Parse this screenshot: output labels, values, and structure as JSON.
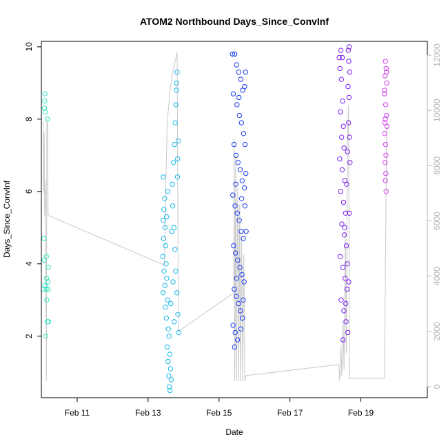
{
  "chart_data": {
    "type": "scatter",
    "title": "ATOM2 Northbound Days_Since_ConvInf",
    "xlabel": "Date",
    "ylabel": "Days_Since_ConvInf",
    "x_unit": "date",
    "xlim": [
      "2019-02-09T23:45",
      "2019-02-20T21:00"
    ],
    "x_ticks": [
      {
        "label": "Feb 11",
        "date": "2019-02-11"
      },
      {
        "label": "Feb 13",
        "date": "2019-02-13"
      },
      {
        "label": "Feb 15",
        "date": "2019-02-15"
      },
      {
        "label": "Feb 17",
        "date": "2019-02-17"
      },
      {
        "label": "Feb 19",
        "date": "2019-02-19"
      }
    ],
    "ylim": [
      0.3,
      10.15
    ],
    "y_ticks": [
      2,
      4,
      6,
      8,
      10
    ],
    "y2_lim": [
      -400,
      12500
    ],
    "y2_ticks": [
      0,
      2000,
      4000,
      6000,
      8000,
      10000,
      12000
    ],
    "grid": false,
    "legend": "none",
    "colors": {
      "line": "#c8c8c8",
      "right_axis": "#b3b3b3",
      "group1": "#2ee8c2",
      "group2": "#14b8ec",
      "group3": "#1a3cf0",
      "group4": "#7a1cf0",
      "group5": "#d43cf0"
    },
    "series": [
      {
        "type": "scatter",
        "color": "#2ee8c2",
        "points": [
          [
            "2019-02-10T02:10",
            8.7
          ],
          [
            "2019-02-10T02:00",
            8.5
          ],
          [
            "2019-02-10T01:50",
            8.3
          ],
          [
            "2019-02-10T02:20",
            8.2
          ],
          [
            "2019-02-10T03:50",
            8.0
          ],
          [
            "2019-02-10T01:30",
            4.7
          ],
          [
            "2019-02-10T01:40",
            4.1
          ],
          [
            "2019-02-10T03:10",
            4.2
          ],
          [
            "2019-02-10T04:30",
            3.9
          ],
          [
            "2019-02-10T03:20",
            3.6
          ],
          [
            "2019-02-10T02:10",
            3.4
          ],
          [
            "2019-02-10T04:10",
            3.5
          ],
          [
            "2019-02-10T01:10",
            3.3
          ],
          [
            "2019-02-10T03:00",
            3.3
          ],
          [
            "2019-02-10T04:20",
            3.3
          ],
          [
            "2019-02-10T03:30",
            3.0
          ],
          [
            "2019-02-10T04:00",
            2.4
          ],
          [
            "2019-02-10T04:30",
            2.4
          ],
          [
            "2019-02-10T02:40",
            2.0
          ]
        ]
      },
      {
        "type": "scatter",
        "color": "#14b8ec",
        "points": [
          [
            "2019-02-13T10:20",
            6.4
          ],
          [
            "2019-02-13T10:40",
            5.5
          ],
          [
            "2019-02-13T11:10",
            5.8
          ],
          [
            "2019-02-13T10:10",
            5.2
          ],
          [
            "2019-02-13T11:30",
            5.0
          ],
          [
            "2019-02-13T10:30",
            4.7
          ],
          [
            "2019-02-13T11:50",
            4.5
          ],
          [
            "2019-02-13T10:00",
            4.2
          ],
          [
            "2019-02-13T12:10",
            4.0
          ],
          [
            "2019-02-13T10:50",
            3.8
          ],
          [
            "2019-02-13T12:40",
            3.6
          ],
          [
            "2019-02-13T11:20",
            3.4
          ],
          [
            "2019-02-13T10:10",
            3.2
          ],
          [
            "2019-02-13T13:10",
            3.0
          ],
          [
            "2019-02-13T11:40",
            2.8
          ],
          [
            "2019-02-13T12:20",
            2.5
          ],
          [
            "2019-02-13T13:40",
            2.2
          ],
          [
            "2019-02-13T14:10",
            2.0
          ],
          [
            "2019-02-13T12:50",
            1.7
          ],
          [
            "2019-02-13T14:40",
            1.5
          ],
          [
            "2019-02-13T13:30",
            1.3
          ],
          [
            "2019-02-13T15:10",
            1.1
          ],
          [
            "2019-02-13T14:00",
            0.9
          ],
          [
            "2019-02-13T15:40",
            0.8
          ],
          [
            "2019-02-13T14:20",
            0.6
          ],
          [
            "2019-02-13T14:50",
            0.5
          ],
          [
            "2019-02-13T16:20",
            6.2
          ],
          [
            "2019-02-13T17:10",
            6.8
          ],
          [
            "2019-02-13T17:50",
            7.3
          ],
          [
            "2019-02-13T18:20",
            7.9
          ],
          [
            "2019-02-13T18:50",
            8.4
          ],
          [
            "2019-02-13T19:10",
            8.8
          ],
          [
            "2019-02-13T19:20",
            9.0
          ],
          [
            "2019-02-13T19:40",
            9.3
          ],
          [
            "2019-02-13T16:40",
            5.6
          ],
          [
            "2019-02-13T17:30",
            5.0
          ],
          [
            "2019-02-13T18:10",
            4.4
          ],
          [
            "2019-02-13T18:40",
            3.8
          ],
          [
            "2019-02-13T19:30",
            3.2
          ],
          [
            "2019-02-13T20:10",
            2.6
          ],
          [
            "2019-02-13T20:40",
            2.1
          ],
          [
            "2019-02-13T20:00",
            6.9
          ],
          [
            "2019-02-13T20:30",
            7.4
          ],
          [
            "2019-02-13T16:00",
            4.9
          ],
          [
            "2019-02-13T15:20",
            2.9
          ],
          [
            "2019-02-13T12:30",
            5.3
          ],
          [
            "2019-02-13T13:20",
            6.0
          ],
          [
            "2019-02-13T16:50",
            3.5
          ],
          [
            "2019-02-13T17:40",
            2.4
          ],
          [
            "2019-02-13T19:50",
            6.4
          ]
        ]
      },
      {
        "type": "scatter",
        "color": "#1a3cf0",
        "points": [
          [
            "2019-02-15T09:10",
            9.8
          ],
          [
            "2019-02-15T10:40",
            9.8
          ],
          [
            "2019-02-15T11:50",
            9.5
          ],
          [
            "2019-02-15T13:20",
            9.3
          ],
          [
            "2019-02-15T14:40",
            9.1
          ],
          [
            "2019-02-15T16:00",
            8.8
          ],
          [
            "2019-02-15T09:40",
            8.7
          ],
          [
            "2019-02-15T12:10",
            8.4
          ],
          [
            "2019-02-15T13:50",
            8.1
          ],
          [
            "2019-02-15T15:10",
            7.9
          ],
          [
            "2019-02-15T16:40",
            7.6
          ],
          [
            "2019-02-15T10:10",
            7.3
          ],
          [
            "2019-02-15T11:30",
            7.0
          ],
          [
            "2019-02-15T12:50",
            6.8
          ],
          [
            "2019-02-15T14:20",
            6.6
          ],
          [
            "2019-02-15T15:40",
            6.3
          ],
          [
            "2019-02-15T17:10",
            6.1
          ],
          [
            "2019-02-15T09:20",
            5.9
          ],
          [
            "2019-02-15T10:50",
            5.6
          ],
          [
            "2019-02-15T12:20",
            5.4
          ],
          [
            "2019-02-15T13:40",
            5.2
          ],
          [
            "2019-02-15T15:00",
            4.9
          ],
          [
            "2019-02-15T16:30",
            4.7
          ],
          [
            "2019-02-15T09:50",
            4.5
          ],
          [
            "2019-02-15T11:10",
            4.3
          ],
          [
            "2019-02-15T12:40",
            4.1
          ],
          [
            "2019-02-15T14:10",
            3.9
          ],
          [
            "2019-02-15T15:30",
            3.7
          ],
          [
            "2019-02-15T17:00",
            3.5
          ],
          [
            "2019-02-15T10:20",
            3.3
          ],
          [
            "2019-02-15T11:40",
            3.1
          ],
          [
            "2019-02-15T13:10",
            2.9
          ],
          [
            "2019-02-15T14:30",
            2.7
          ],
          [
            "2019-02-15T15:50",
            2.5
          ],
          [
            "2019-02-15T09:30",
            2.3
          ],
          [
            "2019-02-15T11:00",
            2.1
          ],
          [
            "2019-02-15T12:30",
            1.9
          ],
          [
            "2019-02-15T10:30",
            1.7
          ],
          [
            "2019-02-15T17:20",
            8.9
          ],
          [
            "2019-02-15T18:00",
            9.3
          ],
          [
            "2019-02-15T17:40",
            7.3
          ],
          [
            "2019-02-15T18:10",
            6.5
          ],
          [
            "2019-02-15T17:30",
            5.6
          ],
          [
            "2019-02-15T18:20",
            4.9
          ],
          [
            "2019-02-15T16:20",
            3.0
          ],
          [
            "2019-02-15T14:50",
            2.2
          ],
          [
            "2019-02-15T13:30",
            8.6
          ],
          [
            "2019-02-15T11:20",
            6.2
          ],
          [
            "2019-02-15T12:00",
            3.6
          ],
          [
            "2019-02-15T15:20",
            5.8
          ]
        ]
      },
      {
        "type": "scatter",
        "color": "#7a1cf0",
        "points": [
          [
            "2019-02-18T09:20",
            9.7
          ],
          [
            "2019-02-18T10:30",
            9.9
          ],
          [
            "2019-02-18T09:50",
            9.4
          ],
          [
            "2019-02-18T10:50",
            9.1
          ],
          [
            "2019-02-18T11:40",
            8.5
          ],
          [
            "2019-02-18T10:10",
            8.2
          ],
          [
            "2019-02-18T12:10",
            7.8
          ],
          [
            "2019-02-18T11:00",
            7.5
          ],
          [
            "2019-02-18T12:40",
            7.2
          ],
          [
            "2019-02-18T09:40",
            6.9
          ],
          [
            "2019-02-18T11:20",
            6.6
          ],
          [
            "2019-02-18T13:10",
            6.3
          ],
          [
            "2019-02-18T10:20",
            6.0
          ],
          [
            "2019-02-18T12:20",
            5.7
          ],
          [
            "2019-02-18T13:40",
            5.4
          ],
          [
            "2019-02-18T11:10",
            5.1
          ],
          [
            "2019-02-18T12:50",
            4.8
          ],
          [
            "2019-02-18T14:10",
            4.5
          ],
          [
            "2019-02-18T10:00",
            4.2
          ],
          [
            "2019-02-18T11:50",
            3.9
          ],
          [
            "2019-02-18T13:20",
            3.6
          ],
          [
            "2019-02-18T14:40",
            3.3
          ],
          [
            "2019-02-18T10:40",
            3.0
          ],
          [
            "2019-02-18T12:30",
            2.7
          ],
          [
            "2019-02-18T14:00",
            2.4
          ],
          [
            "2019-02-18T15:10",
            2.1
          ],
          [
            "2019-02-18T15:30",
            9.9
          ],
          [
            "2019-02-18T16:10",
            10.0
          ],
          [
            "2019-02-18T15:50",
            9.6
          ],
          [
            "2019-02-18T16:30",
            9.3
          ],
          [
            "2019-02-18T15:20",
            8.9
          ],
          [
            "2019-02-18T16:00",
            8.6
          ],
          [
            "2019-02-18T15:40",
            7.9
          ],
          [
            "2019-02-18T16:20",
            7.5
          ],
          [
            "2019-02-18T15:00",
            7.1
          ],
          [
            "2019-02-18T16:40",
            6.8
          ],
          [
            "2019-02-18T14:20",
            6.2
          ],
          [
            "2019-02-18T13:00",
            5.0
          ],
          [
            "2019-02-18T14:50",
            4.0
          ],
          [
            "2019-02-18T13:50",
            2.9
          ],
          [
            "2019-02-18T12:00",
            1.9
          ],
          [
            "2019-02-18T15:45",
            3.5
          ],
          [
            "2019-02-18T16:15",
            5.4
          ],
          [
            "2019-02-18T11:30",
            9.7
          ]
        ]
      },
      {
        "type": "scatter",
        "color": "#d43cf0",
        "points": [
          [
            "2019-02-19T16:40",
            9.6
          ],
          [
            "2019-02-19T17:10",
            9.4
          ],
          [
            "2019-02-19T16:20",
            9.2
          ],
          [
            "2019-02-19T17:30",
            9.0
          ],
          [
            "2019-02-19T16:00",
            8.7
          ],
          [
            "2019-02-19T16:50",
            8.4
          ],
          [
            "2019-02-19T17:20",
            8.1
          ],
          [
            "2019-02-19T16:30",
            8.0
          ],
          [
            "2019-02-19T17:40",
            7.8
          ],
          [
            "2019-02-19T16:10",
            7.6
          ],
          [
            "2019-02-19T16:45",
            7.3
          ],
          [
            "2019-02-19T17:00",
            7.0
          ],
          [
            "2019-02-19T16:25",
            6.8
          ],
          [
            "2019-02-19T16:55",
            6.5
          ],
          [
            "2019-02-19T16:35",
            6.3
          ],
          [
            "2019-02-19T17:05",
            6.0
          ],
          [
            "2019-02-19T16:15",
            7.9
          ],
          [
            "2019-02-19T17:25",
            9.3
          ],
          [
            "2019-02-19T16:05",
            8.8
          ]
        ]
      }
    ],
    "line_series": {
      "type": "line",
      "axis": "right",
      "color": "#c8c8c8",
      "points": [
        [
          "2019-02-10T01:00",
          9600
        ],
        [
          "2019-02-10T01:20",
          7000
        ],
        [
          "2019-02-10T01:40",
          9200
        ],
        [
          "2019-02-10T02:00",
          6200
        ],
        [
          "2019-02-10T02:30",
          7400
        ],
        [
          "2019-02-10T03:10",
          200
        ],
        [
          "2019-02-10T03:30",
          9700
        ],
        [
          "2019-02-10T04:00",
          9400
        ],
        [
          "2019-02-10T04:20",
          6200
        ],
        [
          "2019-02-13T11:00",
          4400
        ],
        [
          "2019-02-13T11:20",
          5000
        ],
        [
          "2019-02-13T12:00",
          7400
        ],
        [
          "2019-02-13T13:00",
          9600
        ],
        [
          "2019-02-13T14:00",
          10200
        ],
        [
          "2019-02-13T15:00",
          10800
        ],
        [
          "2019-02-13T16:30",
          11300
        ],
        [
          "2019-02-13T18:00",
          11700
        ],
        [
          "2019-02-13T19:40",
          12100
        ],
        [
          "2019-02-13T20:30",
          2000
        ],
        [
          "2019-02-15T10:00",
          3400
        ],
        [
          "2019-02-15T10:20",
          9000
        ],
        [
          "2019-02-15T10:40",
          200
        ],
        [
          "2019-02-15T11:20",
          8400
        ],
        [
          "2019-02-15T11:50",
          200
        ],
        [
          "2019-02-15T12:40",
          7200
        ],
        [
          "2019-02-15T13:20",
          200
        ],
        [
          "2019-02-15T14:00",
          6600
        ],
        [
          "2019-02-15T14:30",
          200
        ],
        [
          "2019-02-15T15:20",
          5400
        ],
        [
          "2019-02-15T16:00",
          200
        ],
        [
          "2019-02-15T16:50",
          4800
        ],
        [
          "2019-02-15T17:30",
          200
        ],
        [
          "2019-02-15T18:20",
          400
        ],
        [
          "2019-02-18T09:10",
          800
        ],
        [
          "2019-02-18T09:40",
          200
        ],
        [
          "2019-02-18T10:30",
          1500
        ],
        [
          "2019-02-18T11:10",
          400
        ],
        [
          "2019-02-18T12:00",
          2400
        ],
        [
          "2019-02-18T12:40",
          600
        ],
        [
          "2019-02-18T13:30",
          5600
        ],
        [
          "2019-02-18T14:10",
          1200
        ],
        [
          "2019-02-18T15:00",
          8800
        ],
        [
          "2019-02-18T15:40",
          10200
        ],
        [
          "2019-02-18T16:30",
          300
        ],
        [
          "2019-02-18T17:30",
          300
        ],
        [
          "2019-02-19T16:00",
          300
        ],
        [
          "2019-02-19T16:40",
          4500
        ],
        [
          "2019-02-19T17:20",
          8700
        ],
        [
          "2019-02-19T17:40",
          9600
        ]
      ]
    }
  }
}
